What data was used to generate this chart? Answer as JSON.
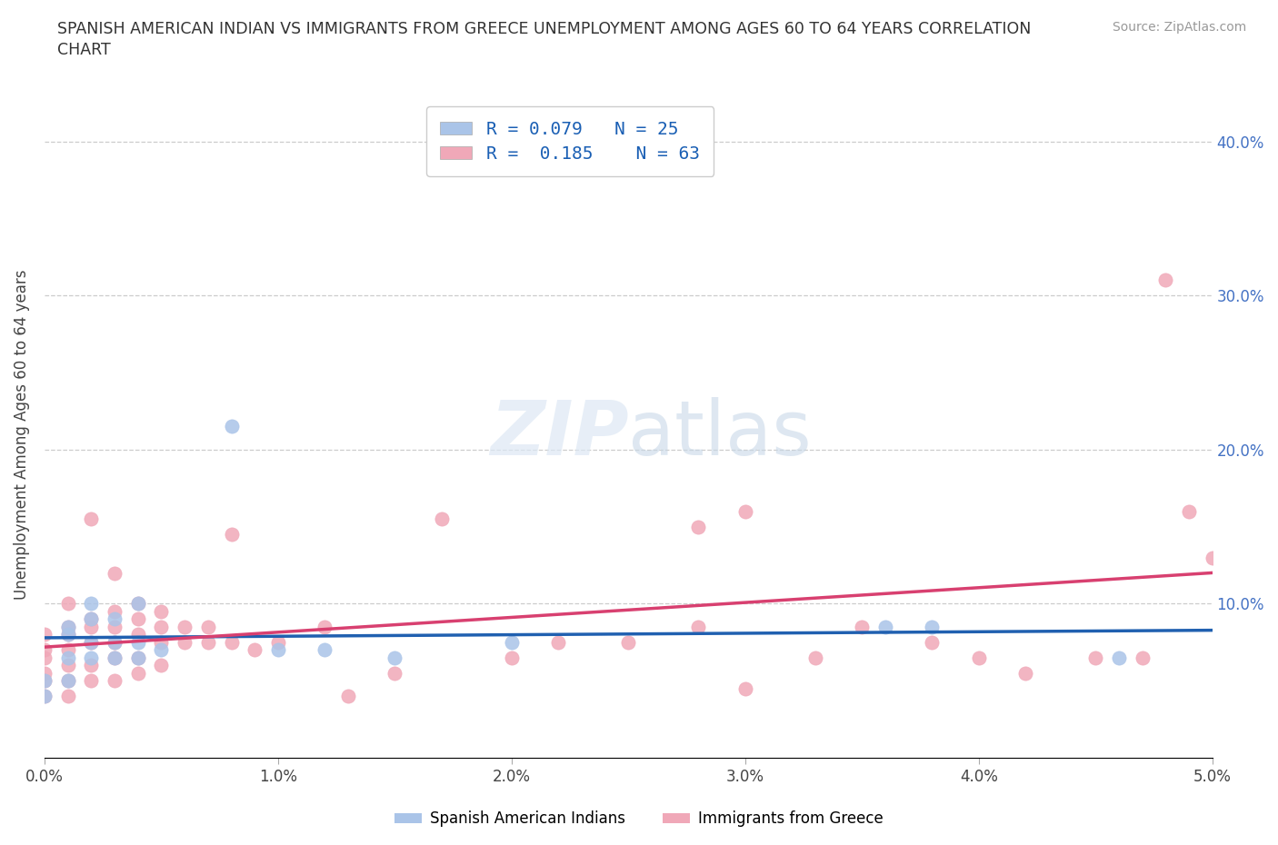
{
  "title_line1": "SPANISH AMERICAN INDIAN VS IMMIGRANTS FROM GREECE UNEMPLOYMENT AMONG AGES 60 TO 64 YEARS CORRELATION",
  "title_line2": "CHART",
  "source": "Source: ZipAtlas.com",
  "ylabel": "Unemployment Among Ages 60 to 64 years",
  "xlim": [
    0.0,
    0.05
  ],
  "ylim": [
    0.0,
    0.42
  ],
  "xticks": [
    0.0,
    0.01,
    0.02,
    0.03,
    0.04,
    0.05
  ],
  "yticks": [
    0.1,
    0.2,
    0.3,
    0.4
  ],
  "xticklabels": [
    "0.0%",
    "1.0%",
    "2.0%",
    "3.0%",
    "4.0%",
    "5.0%"
  ],
  "yticklabels_right": [
    "10.0%",
    "20.0%",
    "30.0%",
    "40.0%"
  ],
  "blue_R": "0.079",
  "blue_N": "25",
  "pink_R": "0.185",
  "pink_N": "63",
  "blue_color": "#aac4e8",
  "pink_color": "#f0a8b8",
  "blue_line_color": "#2060b0",
  "pink_line_color": "#d84070",
  "legend_label_blue": "Spanish American Indians",
  "legend_label_pink": "Immigrants from Greece",
  "blue_scatter_x": [
    0.0,
    0.0,
    0.001,
    0.001,
    0.001,
    0.001,
    0.002,
    0.002,
    0.002,
    0.002,
    0.003,
    0.003,
    0.003,
    0.004,
    0.004,
    0.004,
    0.005,
    0.008,
    0.01,
    0.012,
    0.015,
    0.02,
    0.036,
    0.038,
    0.046
  ],
  "blue_scatter_y": [
    0.04,
    0.05,
    0.05,
    0.065,
    0.08,
    0.085,
    0.065,
    0.075,
    0.09,
    0.1,
    0.065,
    0.075,
    0.09,
    0.065,
    0.075,
    0.1,
    0.07,
    0.215,
    0.07,
    0.07,
    0.065,
    0.075,
    0.085,
    0.085,
    0.065
  ],
  "pink_scatter_x": [
    0.0,
    0.0,
    0.0,
    0.0,
    0.0,
    0.0,
    0.001,
    0.001,
    0.001,
    0.001,
    0.001,
    0.001,
    0.001,
    0.002,
    0.002,
    0.002,
    0.002,
    0.002,
    0.002,
    0.003,
    0.003,
    0.003,
    0.003,
    0.003,
    0.003,
    0.004,
    0.004,
    0.004,
    0.004,
    0.004,
    0.005,
    0.005,
    0.005,
    0.005,
    0.006,
    0.006,
    0.007,
    0.007,
    0.008,
    0.008,
    0.009,
    0.01,
    0.012,
    0.013,
    0.015,
    0.017,
    0.02,
    0.022,
    0.025,
    0.028,
    0.03,
    0.033,
    0.035,
    0.038,
    0.04,
    0.042,
    0.045,
    0.047,
    0.048,
    0.049,
    0.05,
    0.03,
    0.028
  ],
  "pink_scatter_y": [
    0.04,
    0.05,
    0.055,
    0.065,
    0.07,
    0.08,
    0.04,
    0.05,
    0.06,
    0.07,
    0.08,
    0.085,
    0.1,
    0.05,
    0.06,
    0.075,
    0.085,
    0.09,
    0.155,
    0.05,
    0.065,
    0.075,
    0.085,
    0.095,
    0.12,
    0.055,
    0.065,
    0.08,
    0.09,
    0.1,
    0.06,
    0.075,
    0.085,
    0.095,
    0.075,
    0.085,
    0.075,
    0.085,
    0.075,
    0.145,
    0.07,
    0.075,
    0.085,
    0.04,
    0.055,
    0.155,
    0.065,
    0.075,
    0.075,
    0.085,
    0.045,
    0.065,
    0.085,
    0.075,
    0.065,
    0.055,
    0.065,
    0.065,
    0.31,
    0.16,
    0.13,
    0.16,
    0.15
  ]
}
